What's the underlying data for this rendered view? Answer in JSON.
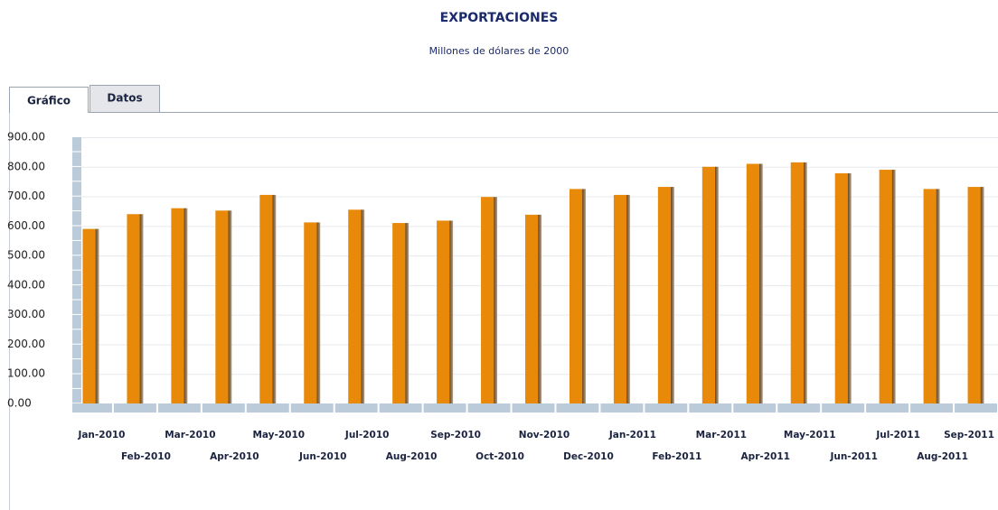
{
  "tabs": [
    "Gráfico",
    "Datos"
  ],
  "chart_data": {
    "type": "bar",
    "title": "EXPORTACIONES",
    "subtitle": "Millones de dólares de 2000",
    "categories": [
      "Jan-2010",
      "Feb-2010",
      "Mar-2010",
      "Apr-2010",
      "May-2010",
      "Jun-2010",
      "Jul-2010",
      "Aug-2010",
      "Sep-2010",
      "Oct-2010",
      "Nov-2010",
      "Dec-2010",
      "Jan-2011",
      "Feb-2011",
      "Mar-2011",
      "Apr-2011",
      "May-2011",
      "Jun-2011",
      "Jul-2011",
      "Aug-2011",
      "Sep-2011"
    ],
    "values": [
      590,
      640,
      660,
      652,
      705,
      612,
      655,
      610,
      618,
      698,
      638,
      725,
      705,
      732,
      800,
      810,
      815,
      778,
      790,
      725,
      732
    ],
    "color": "#e8890a",
    "ylim": [
      0,
      900
    ],
    "yticks": [
      {
        "value": 0,
        "label": "0.00"
      },
      {
        "value": 100,
        "label": "100.00"
      },
      {
        "value": 200,
        "label": "200.00"
      },
      {
        "value": 300,
        "label": "300.00"
      },
      {
        "value": 400,
        "label": "400.00"
      },
      {
        "value": 500,
        "label": "500.00"
      },
      {
        "value": 600,
        "label": "600.00"
      },
      {
        "value": 700,
        "label": "700.00"
      },
      {
        "value": 800,
        "label": "800.00"
      },
      {
        "value": 900,
        "label": "900.00"
      }
    ],
    "grid": true
  }
}
